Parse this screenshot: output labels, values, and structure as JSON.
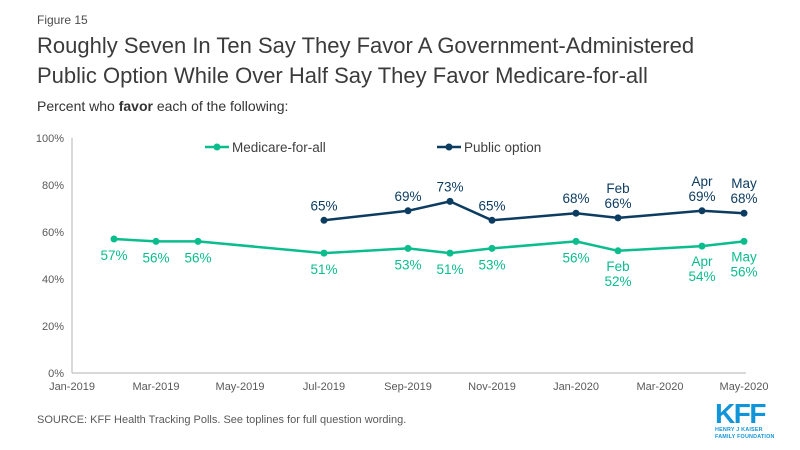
{
  "page": {
    "figure_label": "Figure 15",
    "title_lines": [
      "Roughly Seven In Ten Say They Favor A Government-Administered",
      "Public Option While Over Half Say They Favor Medicare-for-all"
    ],
    "subtitle": {
      "prefix": "Percent who ",
      "bold": "favor",
      "suffix": " each of the following:"
    },
    "source": "SOURCE: KFF Health Tracking Polls. See toplines for full question wording.",
    "logo": {
      "text": "KFF",
      "sub_line1": "HENRY J KAISER",
      "sub_line2": "FAMILY FOUNDATION",
      "color": "#1295d8"
    }
  },
  "chart_data": {
    "type": "line",
    "title": "Percent who favor each of the following",
    "grid": false,
    "legend_position": "top-center",
    "ylim": [
      0,
      100
    ],
    "axis_color": "#b3b3b3",
    "tick_label_color": "#595959",
    "legend_text_color": "#404040",
    "y_ticks": [
      {
        "label": "0%",
        "value": 0
      },
      {
        "label": "20%",
        "value": 20
      },
      {
        "label": "40%",
        "value": 40
      },
      {
        "label": "60%",
        "value": 60
      },
      {
        "label": "80%",
        "value": 80
      },
      {
        "label": "100%",
        "value": 100
      }
    ],
    "x_ticks": [
      {
        "label": "Jan-2019",
        "m": 0
      },
      {
        "label": "Mar-2019",
        "m": 2
      },
      {
        "label": "May-2019",
        "m": 4
      },
      {
        "label": "Jul-2019",
        "m": 6
      },
      {
        "label": "Sep-2019",
        "m": 8
      },
      {
        "label": "Nov-2019",
        "m": 10
      },
      {
        "label": "Jan-2020",
        "m": 12
      },
      {
        "label": "Mar-2020",
        "m": 14
      },
      {
        "label": "May-2020",
        "m": 16
      }
    ],
    "series": [
      {
        "name": "Medicare-for-all",
        "color": "#0bbd8d",
        "label_side": "below",
        "points": [
          {
            "x": "Feb-2019",
            "m": 1,
            "value": 57,
            "label": [
              "57%"
            ]
          },
          {
            "x": "Mar-2019",
            "m": 2,
            "value": 56,
            "label": [
              "56%"
            ]
          },
          {
            "x": "Apr-2019",
            "m": 3,
            "value": 56,
            "label": [
              "56%"
            ]
          },
          {
            "x": "Jul-2019",
            "m": 6,
            "value": 51,
            "label": [
              "51%"
            ]
          },
          {
            "x": "Sep-2019",
            "m": 8,
            "value": 53,
            "label": [
              "53%"
            ]
          },
          {
            "x": "Oct-2019",
            "m": 9,
            "value": 51,
            "label": [
              "51%"
            ]
          },
          {
            "x": "Nov-2019",
            "m": 10,
            "value": 53,
            "label": [
              "53%"
            ]
          },
          {
            "x": "Jan-2020",
            "m": 12,
            "value": 56,
            "label": [
              "56%"
            ]
          },
          {
            "x": "Feb-2020",
            "m": 13,
            "value": 52,
            "label": [
              "Feb",
              "52%"
            ]
          },
          {
            "x": "Apr-2020",
            "m": 15,
            "value": 54,
            "label": [
              "Apr",
              "54%"
            ]
          },
          {
            "x": "May-2020",
            "m": 16,
            "value": 56,
            "label": [
              "May",
              "56%"
            ]
          }
        ]
      },
      {
        "name": "Public option",
        "color": "#0d3c61",
        "label_side": "above",
        "points": [
          {
            "x": "Jul-2019",
            "m": 6,
            "value": 65,
            "label": [
              "65%"
            ]
          },
          {
            "x": "Sep-2019",
            "m": 8,
            "value": 69,
            "label": [
              "69%"
            ]
          },
          {
            "x": "Oct-2019",
            "m": 9,
            "value": 73,
            "label": [
              "73%"
            ]
          },
          {
            "x": "Nov-2019",
            "m": 10,
            "value": 65,
            "label": [
              "65%"
            ]
          },
          {
            "x": "Jan-2020",
            "m": 12,
            "value": 68,
            "label": [
              "68%"
            ]
          },
          {
            "x": "Feb-2020",
            "m": 13,
            "value": 66,
            "label": [
              "Feb",
              "66%"
            ]
          },
          {
            "x": "Apr-2020",
            "m": 15,
            "value": 69,
            "label": [
              "Apr",
              "69%"
            ]
          },
          {
            "x": "May-2020",
            "m": 16,
            "value": 68,
            "label": [
              "May",
              "68%"
            ]
          }
        ]
      }
    ]
  }
}
